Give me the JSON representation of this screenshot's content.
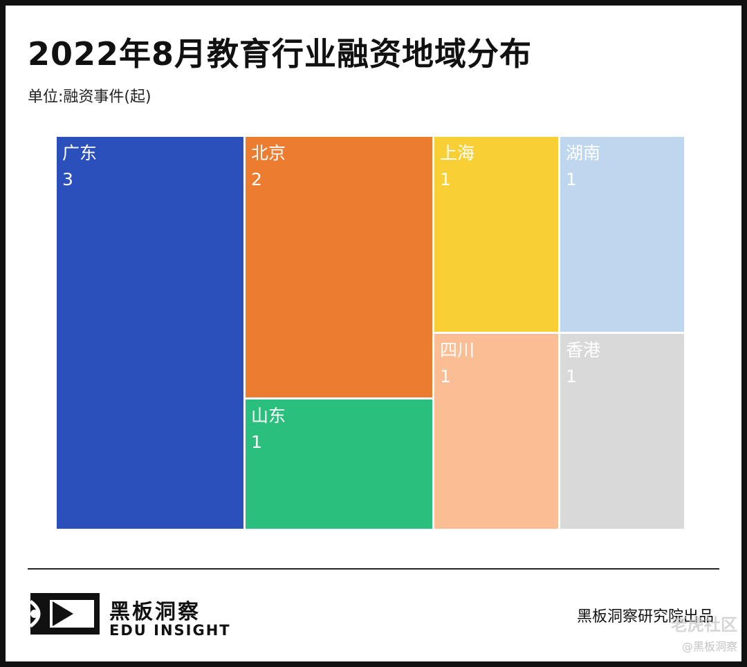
{
  "title": "2022年8月教育行业融资地域分布",
  "subtitle": "单位:融资事件(起)",
  "chart_data": {
    "type": "treemap",
    "unit": "融资事件(起)",
    "items": [
      {
        "label": "广东",
        "value": 3,
        "color": "#2B50BB"
      },
      {
        "label": "北京",
        "value": 2,
        "color": "#EC7C30"
      },
      {
        "label": "山东",
        "value": 1,
        "color": "#2BBF7E"
      },
      {
        "label": "上海",
        "value": 1,
        "color": "#F9CF36"
      },
      {
        "label": "四川",
        "value": 1,
        "color": "#FBBE94"
      },
      {
        "label": "湖南",
        "value": 1,
        "color": "#BED7EE"
      },
      {
        "label": "香港",
        "value": 1,
        "color": "#D9D9D9"
      }
    ]
  },
  "footer": {
    "logo_cn": "黑板洞察",
    "logo_en": "EDU INSIGHT",
    "credit": "黑板洞察研究院出品",
    "watermark_main": "老虎社区",
    "watermark_sub": "@黑板洞察"
  }
}
